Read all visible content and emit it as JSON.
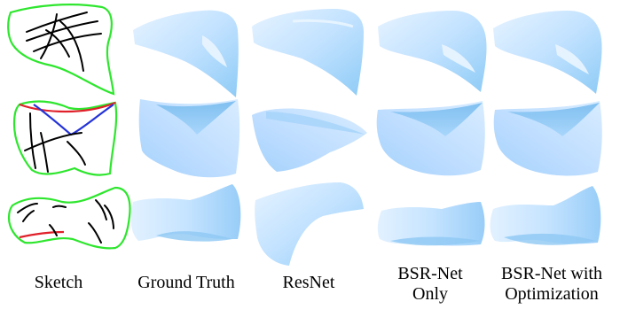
{
  "figure": {
    "columns": [
      {
        "label_lines": [
          "Sketch"
        ]
      },
      {
        "label_lines": [
          "Ground Truth"
        ]
      },
      {
        "label_lines": [
          "ResNet"
        ]
      },
      {
        "label_lines": [
          "BSR-Net",
          "Only"
        ]
      },
      {
        "label_lines": [
          "BSR-Net with",
          "Optimization"
        ]
      }
    ],
    "colors": {
      "sketch_boundary": "#2ee62e",
      "sketch_stroke": "#000000",
      "sketch_red": "#e0202a",
      "sketch_blue": "#2433d8",
      "surface_light": "#dbeeff",
      "surface_mid": "#b5dcff",
      "surface_dark": "#7fc0f2"
    },
    "rows": 3
  }
}
